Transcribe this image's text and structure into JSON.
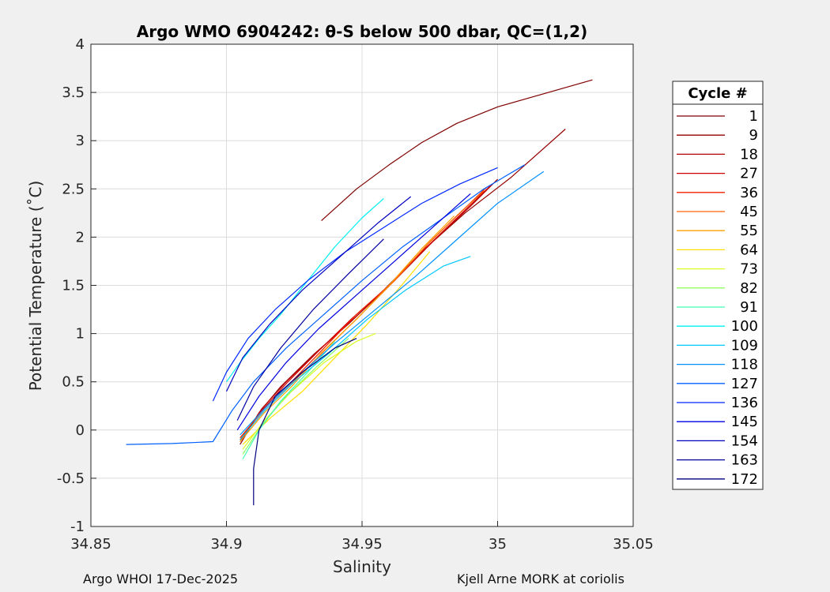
{
  "chart_data": {
    "type": "line",
    "title": "Argo WMO 6904242: θ-S below 500 dbar,  QC=(1,2)",
    "xlabel": "Salinity",
    "ylabel": "Potential Temperature (˚C)",
    "xlim": [
      34.85,
      35.05
    ],
    "ylim": [
      -1,
      4
    ],
    "xticks": [
      34.85,
      34.9,
      34.95,
      35,
      35.05
    ],
    "xtick_labels": [
      "34.85",
      "34.9",
      "34.95",
      "35",
      "35.05"
    ],
    "yticks": [
      -1,
      -0.5,
      0,
      0.5,
      1,
      1.5,
      2,
      2.5,
      3,
      3.5,
      4
    ],
    "ytick_labels": [
      "-1",
      "-0.5",
      "0",
      "0.5",
      "1",
      "1.5",
      "2",
      "2.5",
      "3",
      "3.5",
      "4"
    ],
    "grid": true,
    "legend_title": "Cycle #",
    "legend_position": "outside-right",
    "colormap": "jet",
    "series": [
      {
        "name": "1",
        "color": "#800000",
        "x": [
          34.935,
          34.948,
          34.96,
          34.972,
          34.985,
          35.0,
          35.035
        ],
        "y": [
          2.17,
          2.5,
          2.75,
          2.98,
          3.18,
          3.35,
          3.63
        ]
      },
      {
        "name": "9",
        "color": "#950000",
        "x": [
          34.905,
          34.912,
          34.92,
          34.932,
          34.945,
          34.958,
          34.972,
          34.988,
          35.005,
          35.025
        ],
        "y": [
          -0.15,
          0.18,
          0.45,
          0.78,
          1.1,
          1.45,
          1.85,
          2.25,
          2.62,
          3.12
        ]
      },
      {
        "name": "18",
        "color": "#b30000",
        "x": [
          34.905,
          34.913,
          34.922,
          34.935,
          34.948,
          34.962,
          34.976,
          34.99,
          35.0
        ],
        "y": [
          -0.12,
          0.22,
          0.5,
          0.85,
          1.18,
          1.55,
          1.95,
          2.32,
          2.6
        ]
      },
      {
        "name": "27",
        "color": "#d00000",
        "x": [
          34.905,
          34.913,
          34.922,
          34.934,
          34.946,
          34.96,
          34.974,
          34.988,
          34.998
        ],
        "y": [
          -0.1,
          0.2,
          0.48,
          0.82,
          1.15,
          1.5,
          1.9,
          2.28,
          2.55
        ]
      },
      {
        "name": "36",
        "color": "#ee2000",
        "x": [
          34.905,
          34.914,
          34.924,
          34.936,
          34.948,
          34.962,
          34.975,
          34.988,
          34.996
        ],
        "y": [
          -0.08,
          0.22,
          0.5,
          0.85,
          1.2,
          1.55,
          1.95,
          2.3,
          2.52
        ]
      },
      {
        "name": "45",
        "color": "#ff6000",
        "x": [
          34.905,
          34.914,
          34.924,
          34.936,
          34.949,
          34.962,
          34.974,
          34.986,
          34.995
        ],
        "y": [
          -0.1,
          0.2,
          0.48,
          0.82,
          1.18,
          1.55,
          1.92,
          2.25,
          2.48
        ]
      },
      {
        "name": "55",
        "color": "#ffa000",
        "x": [
          34.905,
          34.914,
          34.924,
          34.935,
          34.948,
          34.96,
          34.972,
          34.984
        ],
        "y": [
          -0.12,
          0.18,
          0.45,
          0.8,
          1.15,
          1.5,
          1.88,
          2.22
        ]
      },
      {
        "name": "64",
        "color": "#ffe000",
        "x": [
          34.906,
          34.916,
          34.928,
          34.94,
          34.952,
          34.964,
          34.975
        ],
        "y": [
          -0.15,
          0.12,
          0.4,
          0.75,
          1.1,
          1.48,
          1.85
        ]
      },
      {
        "name": "73",
        "color": "#d8ff20",
        "x": [
          34.906,
          34.914,
          34.924,
          34.936,
          34.948,
          34.955
        ],
        "y": [
          -0.2,
          0.1,
          0.4,
          0.7,
          0.92,
          1.0
        ]
      },
      {
        "name": "82",
        "color": "#90ff60",
        "x": [
          34.906,
          34.913,
          34.922,
          34.933,
          34.945
        ],
        "y": [
          -0.25,
          0.05,
          0.35,
          0.65,
          0.95
        ]
      },
      {
        "name": "91",
        "color": "#40ffb0",
        "x": [
          34.906,
          34.912,
          34.92,
          34.93,
          34.94
        ],
        "y": [
          -0.3,
          0.0,
          0.3,
          0.6,
          0.92
        ]
      },
      {
        "name": "100",
        "color": "#00f0f0",
        "x": [
          34.9,
          34.905,
          34.912,
          34.92,
          34.93,
          34.94,
          34.95,
          34.958
        ],
        "y": [
          0.5,
          0.7,
          0.95,
          1.2,
          1.55,
          1.9,
          2.2,
          2.4
        ]
      },
      {
        "name": "109",
        "color": "#00c8ff",
        "x": [
          34.905,
          34.914,
          34.925,
          34.938,
          34.952,
          34.966,
          34.98,
          34.99
        ],
        "y": [
          -0.1,
          0.2,
          0.5,
          0.8,
          1.15,
          1.45,
          1.7,
          1.8
        ]
      },
      {
        "name": "118",
        "color": "#0090ff",
        "x": [
          34.905,
          34.915,
          34.926,
          34.94,
          34.955,
          34.97,
          34.984,
          35.0,
          35.017
        ],
        "y": [
          -0.05,
          0.25,
          0.55,
          0.9,
          1.25,
          1.6,
          1.95,
          2.35,
          2.68
        ]
      },
      {
        "name": "127",
        "color": "#0060ff",
        "x": [
          34.863,
          34.88,
          34.895,
          34.902,
          34.91,
          34.922,
          34.936,
          34.95,
          34.965,
          34.98,
          34.995,
          35.01
        ],
        "y": [
          -0.15,
          -0.14,
          -0.12,
          0.2,
          0.5,
          0.85,
          1.2,
          1.55,
          1.9,
          2.2,
          2.5,
          2.75
        ]
      },
      {
        "name": "136",
        "color": "#0028ff",
        "x": [
          34.895,
          34.9,
          34.908,
          34.918,
          34.93,
          34.944,
          34.958,
          34.972,
          34.986,
          35.0
        ],
        "y": [
          0.3,
          0.6,
          0.95,
          1.25,
          1.55,
          1.85,
          2.1,
          2.35,
          2.55,
          2.72
        ]
      },
      {
        "name": "145",
        "color": "#0000e0",
        "x": [
          34.904,
          34.912,
          34.922,
          34.934,
          34.948,
          34.962,
          34.976,
          34.99
        ],
        "y": [
          0.0,
          0.35,
          0.7,
          1.05,
          1.4,
          1.75,
          2.1,
          2.45
        ]
      },
      {
        "name": "154",
        "color": "#0000c0",
        "x": [
          34.9,
          34.906,
          34.916,
          34.928,
          34.942,
          34.956,
          34.968
        ],
        "y": [
          0.4,
          0.75,
          1.1,
          1.45,
          1.8,
          2.15,
          2.42
        ]
      },
      {
        "name": "163",
        "color": "#0000a0",
        "x": [
          34.904,
          34.91,
          34.92,
          34.932,
          34.945,
          34.958
        ],
        "y": [
          0.1,
          0.45,
          0.85,
          1.25,
          1.62,
          1.98
        ]
      },
      {
        "name": "172",
        "color": "#000080",
        "x": [
          34.91,
          34.91,
          34.912,
          34.918,
          34.928,
          34.94,
          34.948
        ],
        "y": [
          -0.78,
          -0.4,
          0.0,
          0.35,
          0.6,
          0.85,
          0.95
        ]
      }
    ]
  },
  "footer": {
    "left": "Argo WHOI 17-Dec-2025",
    "right": "Kjell Arne MORK at coriolis"
  }
}
